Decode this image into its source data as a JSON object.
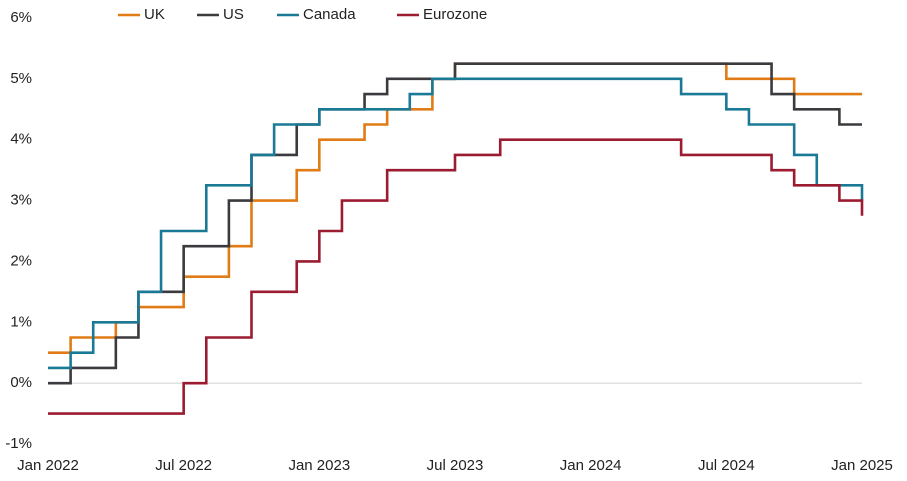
{
  "chart_data": {
    "type": "line",
    "x": [
      "2022-01",
      "2022-02",
      "2022-03",
      "2022-04",
      "2022-05",
      "2022-06",
      "2022-07",
      "2022-08",
      "2022-09",
      "2022-10",
      "2022-11",
      "2022-12",
      "2023-01",
      "2023-02",
      "2023-03",
      "2023-04",
      "2023-05",
      "2023-06",
      "2023-07",
      "2023-08",
      "2023-09",
      "2023-10",
      "2023-11",
      "2023-12",
      "2024-01",
      "2024-02",
      "2024-03",
      "2024-04",
      "2024-05",
      "2024-06",
      "2024-07",
      "2024-08",
      "2024-09",
      "2024-10",
      "2024-11",
      "2024-12",
      "2025-01"
    ],
    "series": [
      {
        "name": "UK",
        "color": "#e07b16",
        "values": [
          0.5,
          0.75,
          0.75,
          1,
          1.25,
          1.25,
          1.75,
          1.75,
          2.25,
          3,
          3,
          3.5,
          4,
          4,
          4.25,
          4.5,
          4.5,
          5,
          5.25,
          5.25,
          5.25,
          5.25,
          5.25,
          5.25,
          5.25,
          5.25,
          5.25,
          5.25,
          5.25,
          5.25,
          5,
          5,
          5,
          4.75,
          4.75,
          4.75,
          4.75
        ]
      },
      {
        "name": "US",
        "color": "#3a3a3f",
        "values": [
          0,
          0.25,
          0.25,
          0.75,
          1.5,
          1.5,
          2.25,
          2.25,
          3,
          3.75,
          3.75,
          4.25,
          4.5,
          4.5,
          4.75,
          5,
          5,
          5,
          5.25,
          5.25,
          5.25,
          5.25,
          5.25,
          5.25,
          5.25,
          5.25,
          5.25,
          5.25,
          5.25,
          5.25,
          5.25,
          5.25,
          4.75,
          4.5,
          4.5,
          4.25,
          4.25
        ]
      },
      {
        "name": "Canada",
        "color": "#1a7a96",
        "values": [
          0.25,
          0.5,
          1,
          1,
          1.5,
          2.5,
          2.5,
          3.25,
          3.25,
          3.75,
          4.25,
          4.25,
          4.5,
          4.5,
          4.5,
          4.5,
          4.75,
          5,
          5,
          5,
          5,
          5,
          5,
          5,
          5,
          5,
          5,
          5,
          4.75,
          4.75,
          4.5,
          4.25,
          4.25,
          3.75,
          3.25,
          3.25,
          3
        ]
      },
      {
        "name": "Eurozone",
        "color": "#9b1c31",
        "values": [
          -0.5,
          -0.5,
          -0.5,
          -0.5,
          -0.5,
          -0.5,
          0,
          0.75,
          0.75,
          1.5,
          1.5,
          2,
          2.5,
          3,
          3,
          3.5,
          3.5,
          3.5,
          3.75,
          3.75,
          4,
          4,
          4,
          4,
          4,
          4,
          4,
          4,
          3.75,
          3.75,
          3.75,
          3.75,
          3.5,
          3.25,
          3.25,
          3,
          2.75
        ]
      }
    ],
    "ylim": [
      -1,
      6
    ],
    "yticks": [
      {
        "value": -1,
        "label": "-1%"
      },
      {
        "value": 0,
        "label": "0%"
      },
      {
        "value": 1,
        "label": "1%"
      },
      {
        "value": 2,
        "label": "2%"
      },
      {
        "value": 3,
        "label": "3%"
      },
      {
        "value": 4,
        "label": "4%"
      },
      {
        "value": 5,
        "label": "5%"
      },
      {
        "value": 6,
        "label": "6%"
      }
    ],
    "xticks": [
      {
        "value": "2022-01",
        "label": "Jan 2022"
      },
      {
        "value": "2022-07",
        "label": "Jul 2022"
      },
      {
        "value": "2023-01",
        "label": "Jan 2023"
      },
      {
        "value": "2023-07",
        "label": "Jul 2023"
      },
      {
        "value": "2024-01",
        "label": "Jan 2024"
      },
      {
        "value": "2024-07",
        "label": "Jul 2024"
      },
      {
        "value": "2025-01",
        "label": "Jan 2025"
      }
    ],
    "step": true,
    "legend": "top"
  }
}
